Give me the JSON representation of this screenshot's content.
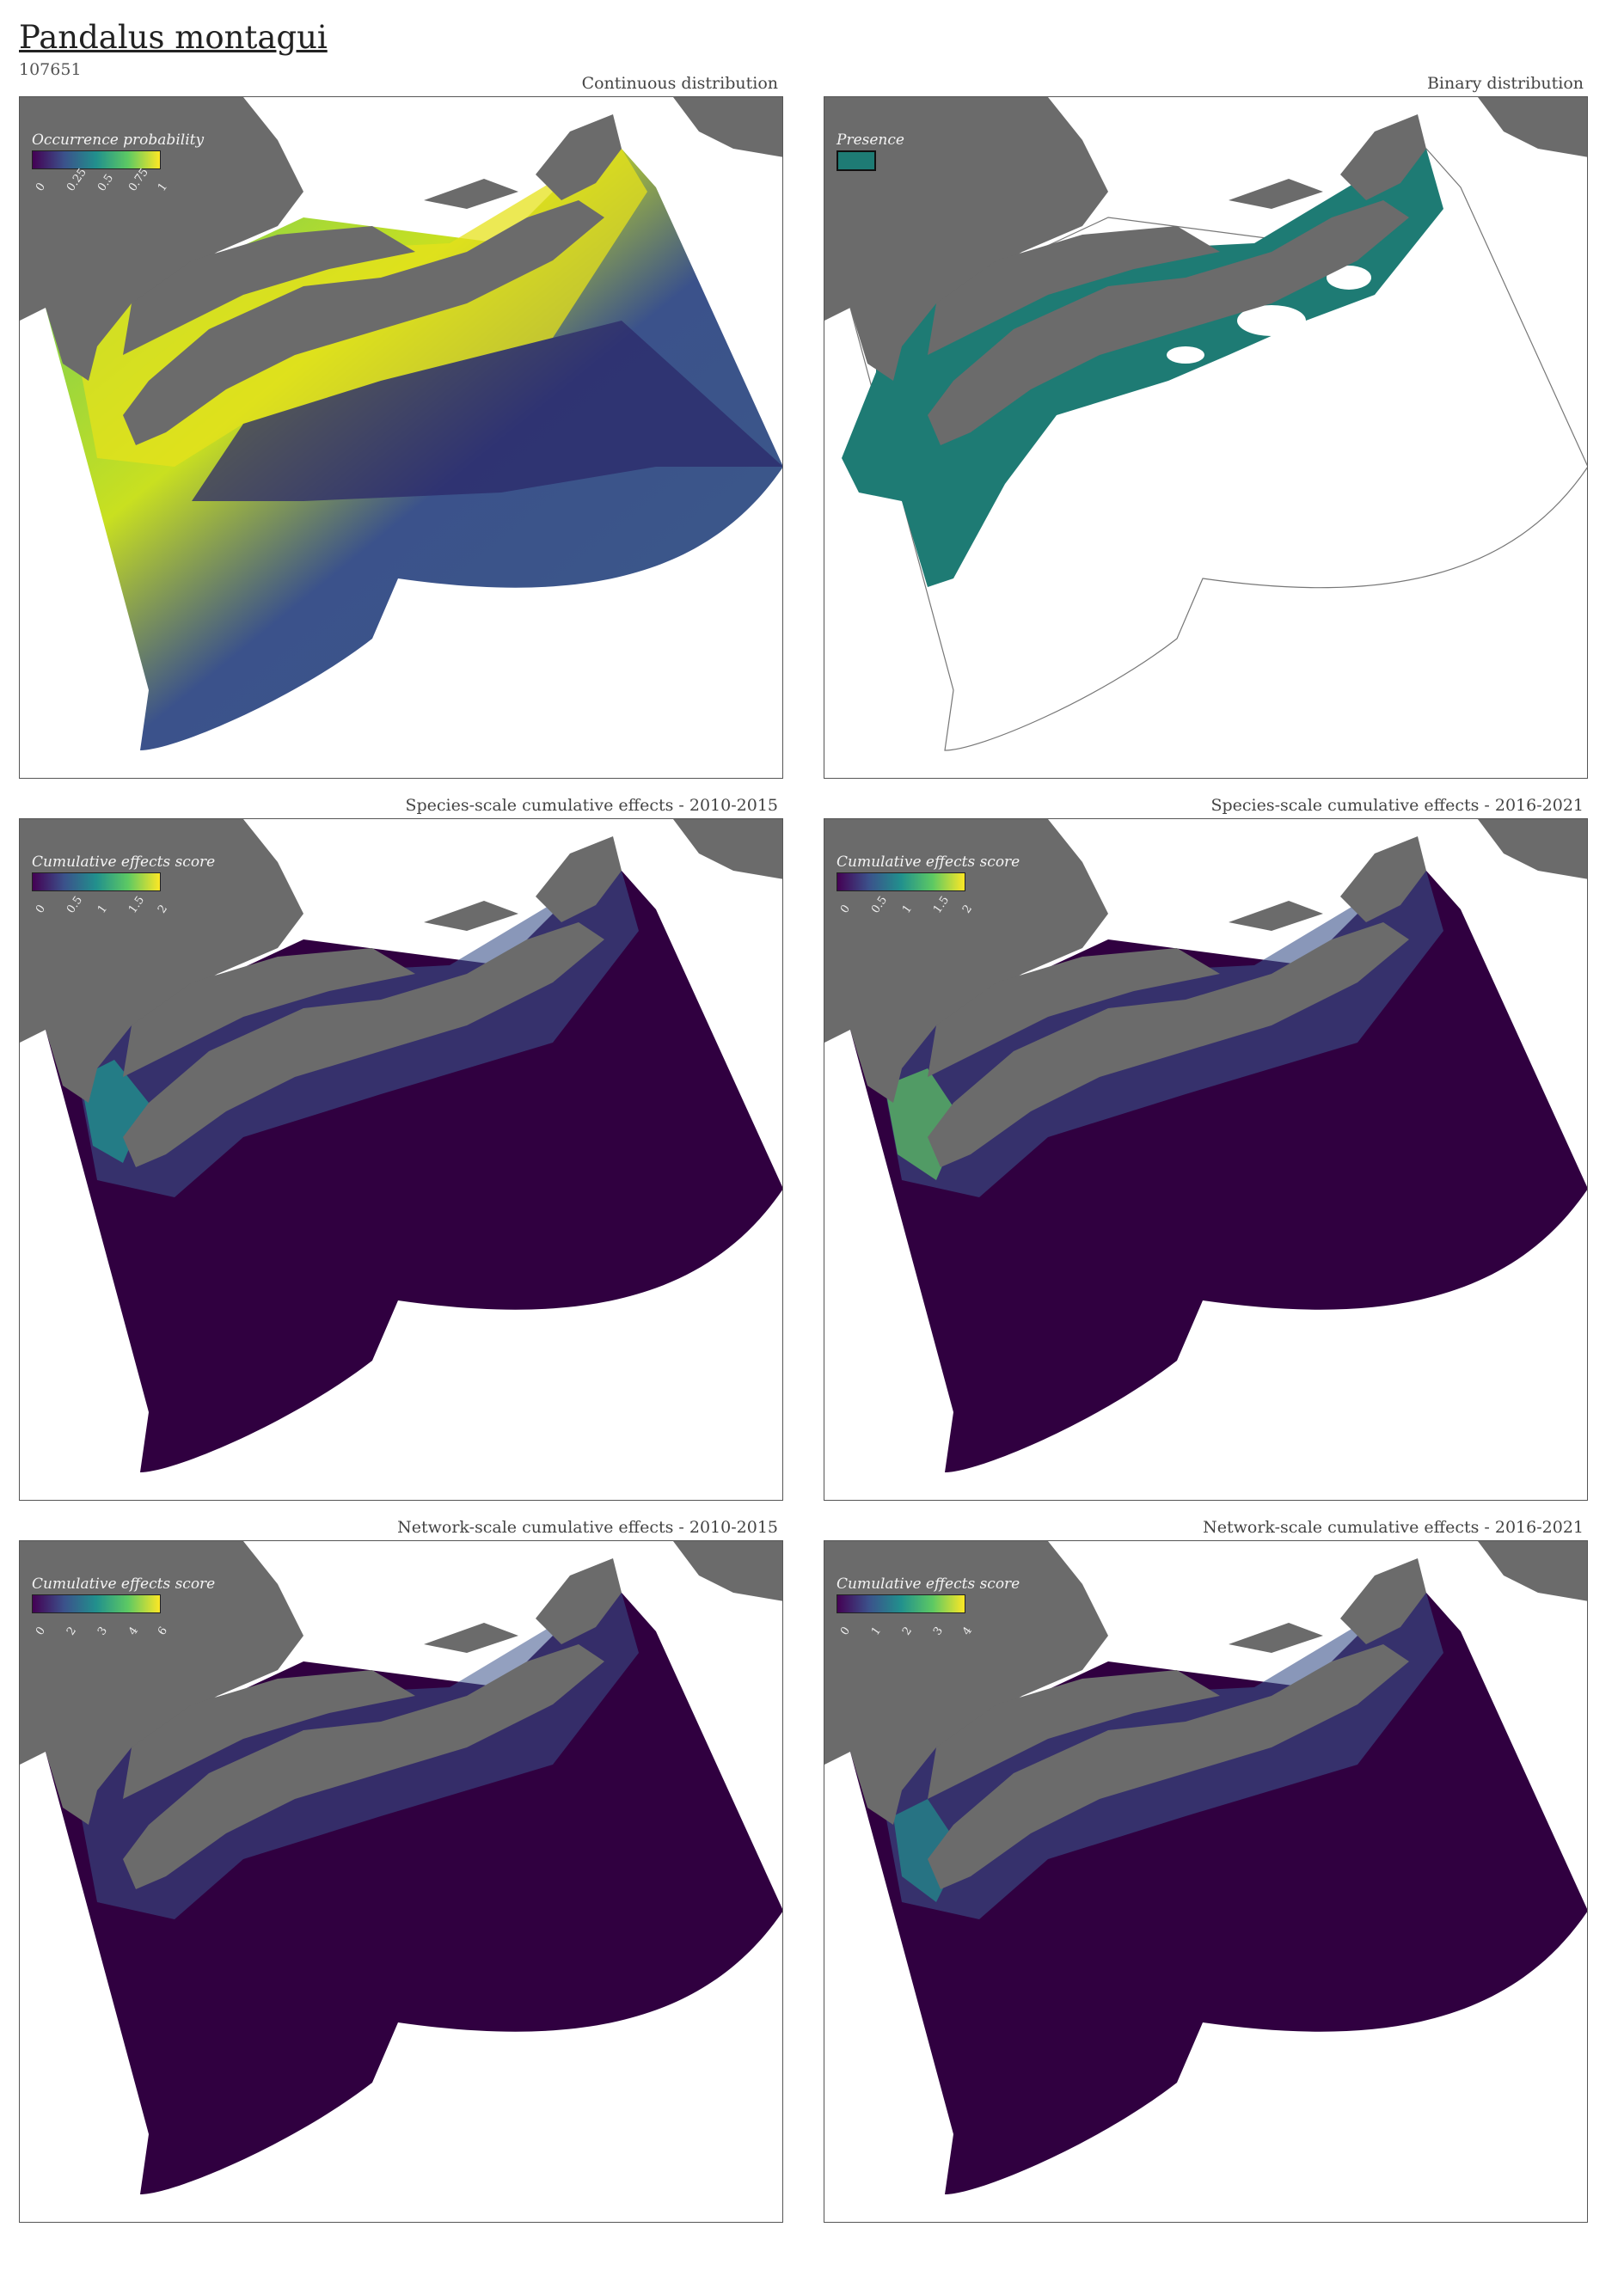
{
  "species": {
    "name": "Pandalus montagui",
    "id": "107651"
  },
  "colors": {
    "land": "#6b6b6b",
    "viridis": [
      "#440154",
      "#3b528b",
      "#21908d",
      "#5dc963",
      "#fde725"
    ],
    "ocean_deep": "#300040",
    "presence": "#1e7b74",
    "frame": "#555555"
  },
  "panels": [
    {
      "title": "Continuous distribution",
      "legend": {
        "title": "Occurrence probability",
        "ticks": [
          "0",
          "0.25",
          "0.5",
          "0.75",
          "1"
        ]
      }
    },
    {
      "title": "Binary distribution",
      "legend": {
        "title": "Presence",
        "ticks": []
      }
    },
    {
      "title": "Species-scale cumulative effects - 2010-2015",
      "legend": {
        "title": "Cumulative effects score",
        "ticks": [
          "0",
          "0.5",
          "1",
          "1.5",
          "2"
        ]
      }
    },
    {
      "title": "Species-scale cumulative effects - 2016-2021",
      "legend": {
        "title": "Cumulative effects score",
        "ticks": [
          "0",
          "0.5",
          "1",
          "1.5",
          "2"
        ]
      }
    },
    {
      "title": "Network-scale cumulative effects - 2010-2015",
      "legend": {
        "title": "Cumulative effects score",
        "ticks": [
          "0",
          "2",
          "3",
          "4",
          "6"
        ]
      }
    },
    {
      "title": "Network-scale cumulative effects - 2016-2021",
      "legend": {
        "title": "Cumulative effects score",
        "ticks": [
          "0",
          "1",
          "2",
          "3",
          "4"
        ]
      }
    }
  ]
}
